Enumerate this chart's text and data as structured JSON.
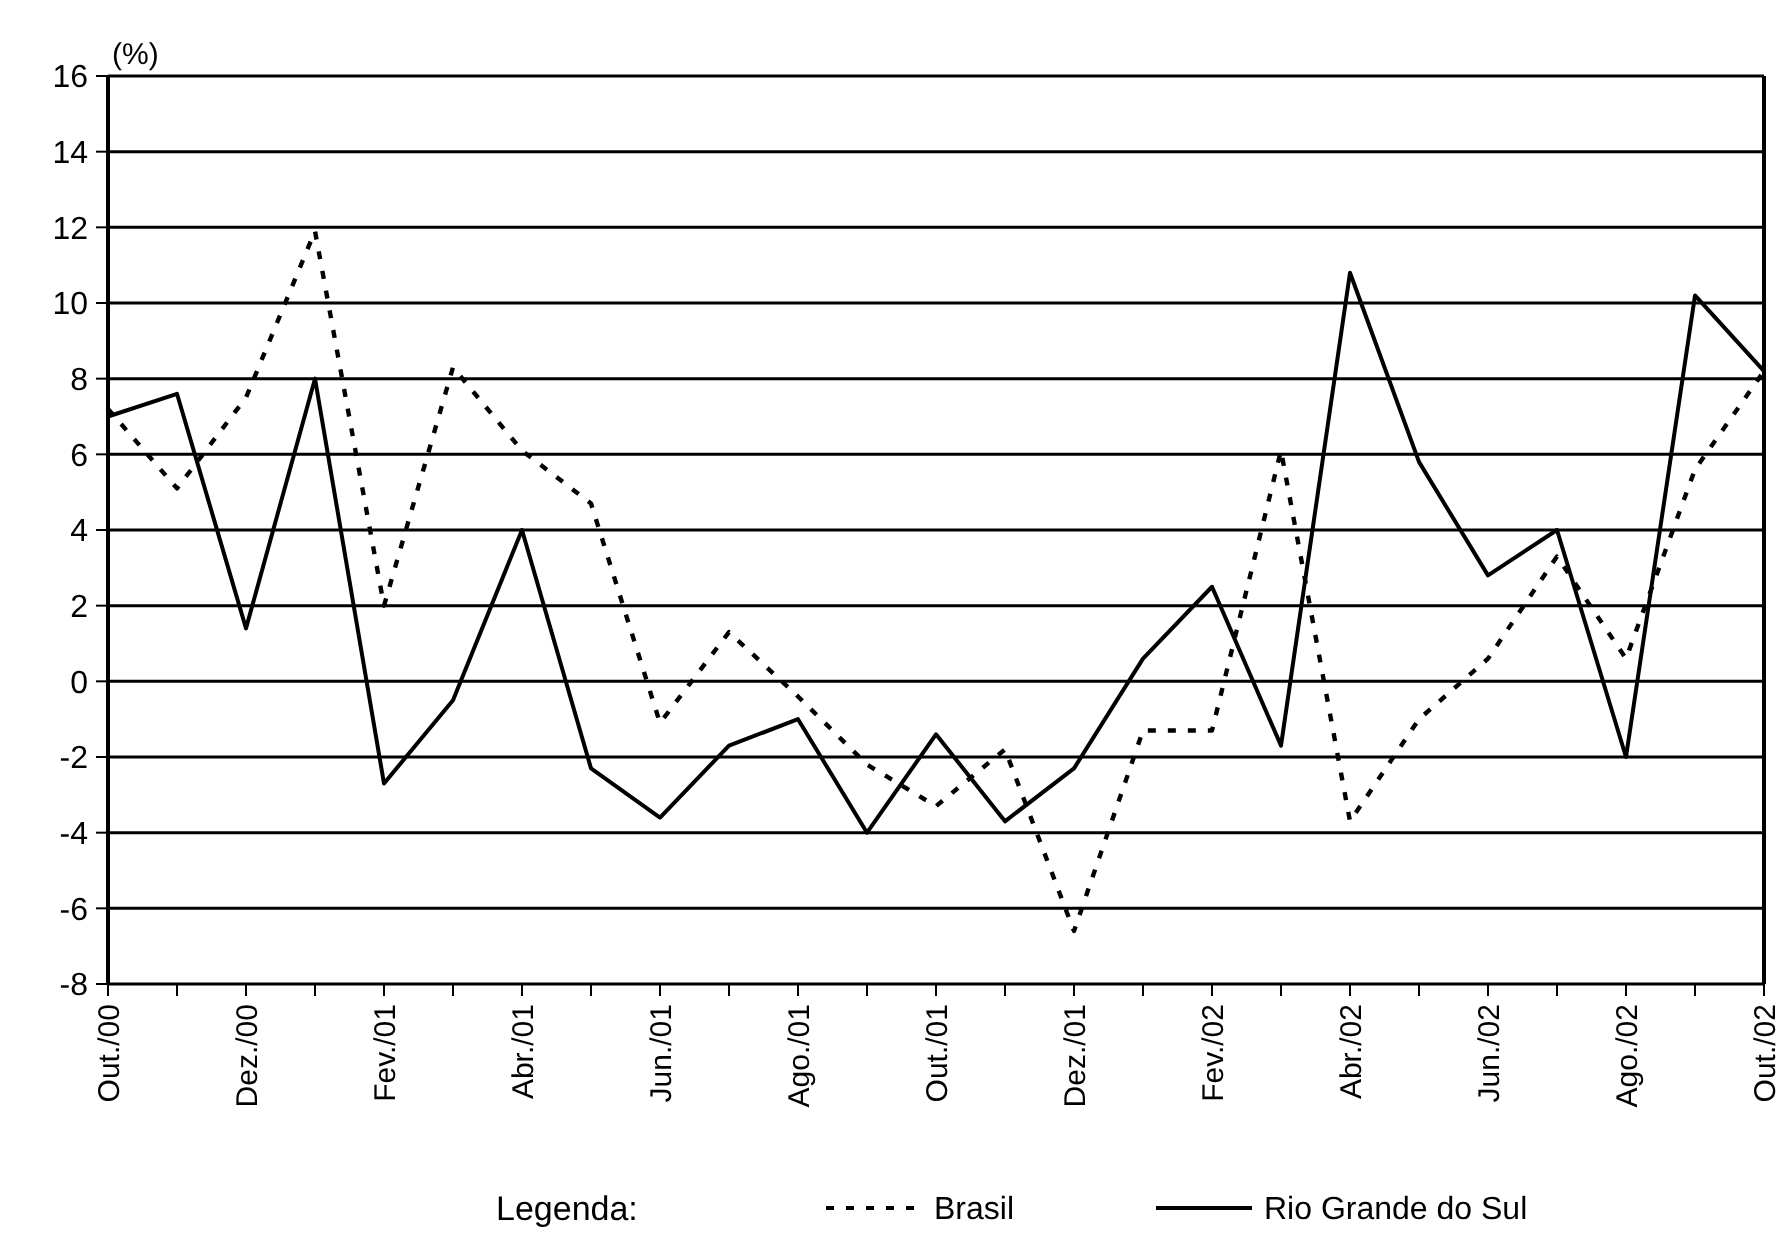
{
  "chart_data": {
    "type": "line",
    "ylabel": "(%)",
    "legend_title": "Legenda:",
    "legend": "bottom",
    "grid": "y",
    "marker": "none",
    "categories": [
      "Out./00",
      null,
      "Dez./00",
      null,
      "Fev./01",
      null,
      "Abr./01",
      null,
      "Jun./01",
      null,
      "Ago./01",
      null,
      "Out./01",
      null,
      "Dez./01",
      null,
      "Fev./02",
      null,
      "Abr./02",
      null,
      "Jun./02",
      null,
      "Ago./02",
      null,
      "Out./02"
    ],
    "ylim": [
      -8,
      16
    ],
    "yticks": [
      -8,
      -6,
      -4,
      -2,
      0,
      2,
      4,
      6,
      8,
      10,
      12,
      14,
      16
    ],
    "series": [
      {
        "name": "Brasil",
        "color": "#000000",
        "line_style": "dotted",
        "values": [
          7.2,
          5.1,
          7.5,
          11.9,
          2.0,
          8.3,
          6.1,
          4.7,
          -1.1,
          1.3,
          -0.4,
          -2.2,
          -3.3,
          -1.8,
          -6.6,
          -1.3,
          -1.3,
          6.1,
          -3.7,
          -1.0,
          0.6,
          3.3,
          0.6,
          5.6,
          8.2
        ]
      },
      {
        "name": "Rio Grande do Sul",
        "color": "#000000",
        "line_style": "solid",
        "values": [
          7.0,
          7.6,
          1.4,
          8.0,
          -2.7,
          -0.5,
          4.0,
          -2.3,
          -3.6,
          -1.7,
          -1.0,
          -4.0,
          -1.4,
          -3.7,
          -2.3,
          0.6,
          2.5,
          -1.7,
          10.8,
          5.8,
          2.8,
          4.0,
          -2.0,
          10.2,
          8.2
        ]
      }
    ]
  }
}
